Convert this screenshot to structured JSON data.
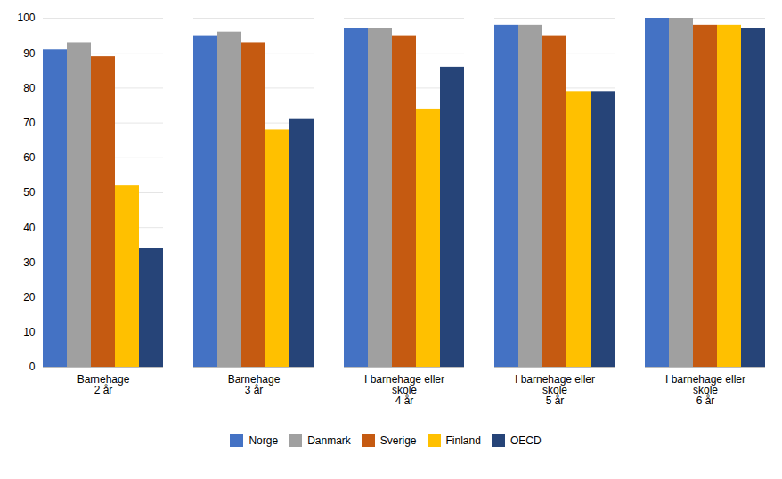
{
  "chart_data": {
    "type": "bar",
    "categories": [
      "Barnehage\n2 år",
      "Barnehage\n3 år",
      "I barnehage eller\nskole\n4 år",
      "I barnehage eller\nskole\n5 år",
      "I barnehage eller\nskole\n6 år"
    ],
    "series": [
      {
        "name": "Norge",
        "color": "#4472C4",
        "values": [
          91,
          95,
          97,
          98,
          100
        ]
      },
      {
        "name": "Danmark",
        "color": "#A0A0A0",
        "values": [
          93,
          96,
          97,
          98,
          100
        ]
      },
      {
        "name": "Sverige",
        "color": "#C55A11",
        "values": [
          89,
          93,
          95,
          95,
          98
        ]
      },
      {
        "name": "Finland",
        "color": "#FFC000",
        "values": [
          52,
          68,
          74,
          79,
          98
        ]
      },
      {
        "name": "OECD",
        "color": "#264478",
        "values": [
          34,
          71,
          86,
          79,
          97
        ]
      }
    ],
    "ylim": [
      0,
      100
    ],
    "yticks": [
      0,
      10,
      20,
      30,
      40,
      50,
      60,
      70,
      80,
      90,
      100
    ],
    "grid": true,
    "legend": "bottom"
  }
}
